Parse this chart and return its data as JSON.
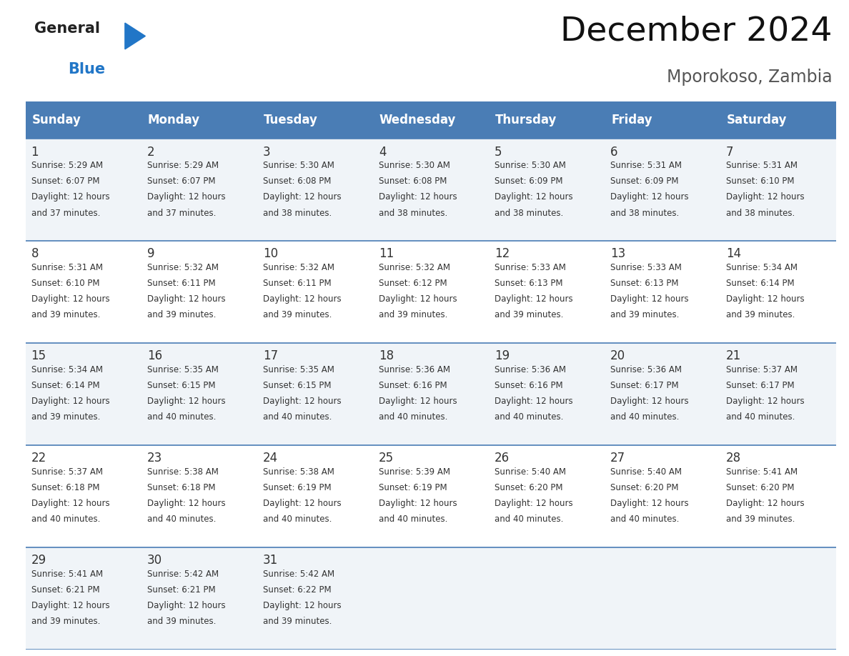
{
  "title": "December 2024",
  "subtitle": "Mporokoso, Zambia",
  "header_color": "#4a7db5",
  "header_text_color": "#FFFFFF",
  "days_of_week": [
    "Sunday",
    "Monday",
    "Tuesday",
    "Wednesday",
    "Thursday",
    "Friday",
    "Saturday"
  ],
  "row_bg_colors": [
    "#f0f4f8",
    "#FFFFFF"
  ],
  "text_color": "#333333",
  "line_color": "#4a7db5",
  "calendar": [
    [
      {
        "day": 1,
        "sunrise": "5:29 AM",
        "sunset": "6:07 PM",
        "daylight_min": "37"
      },
      {
        "day": 2,
        "sunrise": "5:29 AM",
        "sunset": "6:07 PM",
        "daylight_min": "37"
      },
      {
        "day": 3,
        "sunrise": "5:30 AM",
        "sunset": "6:08 PM",
        "daylight_min": "38"
      },
      {
        "day": 4,
        "sunrise": "5:30 AM",
        "sunset": "6:08 PM",
        "daylight_min": "38"
      },
      {
        "day": 5,
        "sunrise": "5:30 AM",
        "sunset": "6:09 PM",
        "daylight_min": "38"
      },
      {
        "day": 6,
        "sunrise": "5:31 AM",
        "sunset": "6:09 PM",
        "daylight_min": "38"
      },
      {
        "day": 7,
        "sunrise": "5:31 AM",
        "sunset": "6:10 PM",
        "daylight_min": "38"
      }
    ],
    [
      {
        "day": 8,
        "sunrise": "5:31 AM",
        "sunset": "6:10 PM",
        "daylight_min": "39"
      },
      {
        "day": 9,
        "sunrise": "5:32 AM",
        "sunset": "6:11 PM",
        "daylight_min": "39"
      },
      {
        "day": 10,
        "sunrise": "5:32 AM",
        "sunset": "6:11 PM",
        "daylight_min": "39"
      },
      {
        "day": 11,
        "sunrise": "5:32 AM",
        "sunset": "6:12 PM",
        "daylight_min": "39"
      },
      {
        "day": 12,
        "sunrise": "5:33 AM",
        "sunset": "6:13 PM",
        "daylight_min": "39"
      },
      {
        "day": 13,
        "sunrise": "5:33 AM",
        "sunset": "6:13 PM",
        "daylight_min": "39"
      },
      {
        "day": 14,
        "sunrise": "5:34 AM",
        "sunset": "6:14 PM",
        "daylight_min": "39"
      }
    ],
    [
      {
        "day": 15,
        "sunrise": "5:34 AM",
        "sunset": "6:14 PM",
        "daylight_min": "39"
      },
      {
        "day": 16,
        "sunrise": "5:35 AM",
        "sunset": "6:15 PM",
        "daylight_min": "40"
      },
      {
        "day": 17,
        "sunrise": "5:35 AM",
        "sunset": "6:15 PM",
        "daylight_min": "40"
      },
      {
        "day": 18,
        "sunrise": "5:36 AM",
        "sunset": "6:16 PM",
        "daylight_min": "40"
      },
      {
        "day": 19,
        "sunrise": "5:36 AM",
        "sunset": "6:16 PM",
        "daylight_min": "40"
      },
      {
        "day": 20,
        "sunrise": "5:36 AM",
        "sunset": "6:17 PM",
        "daylight_min": "40"
      },
      {
        "day": 21,
        "sunrise": "5:37 AM",
        "sunset": "6:17 PM",
        "daylight_min": "40"
      }
    ],
    [
      {
        "day": 22,
        "sunrise": "5:37 AM",
        "sunset": "6:18 PM",
        "daylight_min": "40"
      },
      {
        "day": 23,
        "sunrise": "5:38 AM",
        "sunset": "6:18 PM",
        "daylight_min": "40"
      },
      {
        "day": 24,
        "sunrise": "5:38 AM",
        "sunset": "6:19 PM",
        "daylight_min": "40"
      },
      {
        "day": 25,
        "sunrise": "5:39 AM",
        "sunset": "6:19 PM",
        "daylight_min": "40"
      },
      {
        "day": 26,
        "sunrise": "5:40 AM",
        "sunset": "6:20 PM",
        "daylight_min": "40"
      },
      {
        "day": 27,
        "sunrise": "5:40 AM",
        "sunset": "6:20 PM",
        "daylight_min": "40"
      },
      {
        "day": 28,
        "sunrise": "5:41 AM",
        "sunset": "6:20 PM",
        "daylight_min": "39"
      }
    ],
    [
      {
        "day": 29,
        "sunrise": "5:41 AM",
        "sunset": "6:21 PM",
        "daylight_min": "39"
      },
      {
        "day": 30,
        "sunrise": "5:42 AM",
        "sunset": "6:21 PM",
        "daylight_min": "39"
      },
      {
        "day": 31,
        "sunrise": "5:42 AM",
        "sunset": "6:22 PM",
        "daylight_min": "39"
      },
      null,
      null,
      null,
      null
    ]
  ],
  "logo_general_color": "#222222",
  "logo_blue_color": "#2176C7",
  "title_fontsize": 34,
  "subtitle_fontsize": 17,
  "header_fontsize": 12,
  "day_number_fontsize": 12,
  "cell_text_fontsize": 8.5
}
